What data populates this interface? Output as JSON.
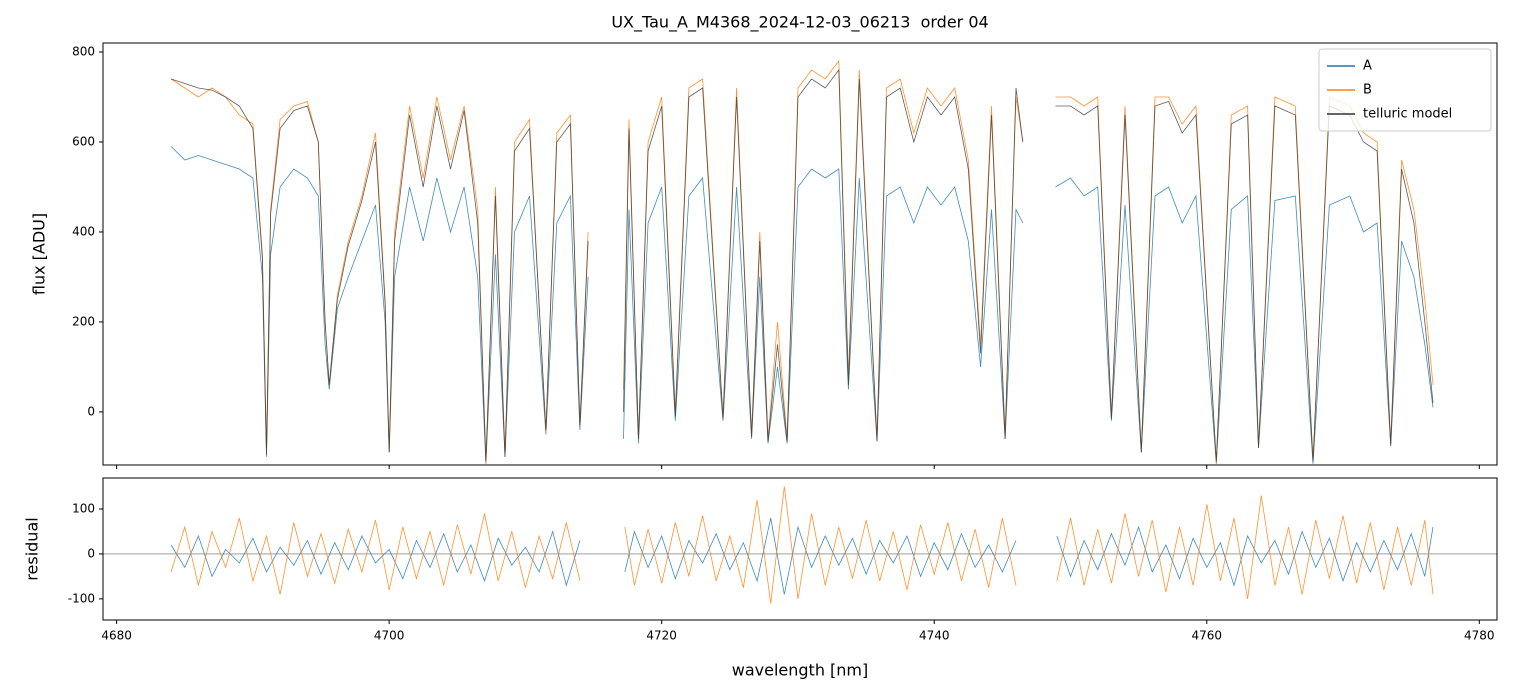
{
  "chart_data": [
    {
      "type": "line",
      "title": "UX_Tau_A_M4368_2024-12-03_06213  order 04",
      "ylabel": "flux [ADU]",
      "xlim": [
        4679,
        4781.3
      ],
      "ylim": [
        -118,
        820
      ],
      "yticks": [
        0,
        200,
        400,
        600,
        800
      ],
      "legend": "upper right",
      "x": [
        4684,
        4685,
        4686,
        4687,
        4688,
        4689,
        4690,
        4690.7,
        4691,
        4691.3,
        4692,
        4693,
        4694,
        4694.8,
        4695.3,
        4695.6,
        4696.2,
        4697,
        4698,
        4699,
        4699.7,
        4700,
        4700.4,
        4701.5,
        4702.5,
        4703.5,
        4704.5,
        4705.5,
        4706.5,
        4707.1,
        4707.8,
        4708.5,
        4709.2,
        4710.3,
        4711.5,
        4712.3,
        4713.3,
        4714,
        4714.6,
        4715.9,
        4717.2,
        4717.6,
        4718.3,
        4719,
        4720,
        4721,
        4722,
        4723,
        4724.5,
        4725.5,
        4726.6,
        4727.2,
        4727.8,
        4728.5,
        4729.2,
        4730,
        4731,
        4732,
        4733,
        4733.7,
        4734.5,
        4735.8,
        4736.5,
        4737.5,
        4738.5,
        4739.5,
        4740.5,
        4741.5,
        4742.5,
        4743.4,
        4744.2,
        4745.2,
        4746,
        4746.5,
        4747.7,
        4748.9,
        4750,
        4751,
        4752,
        4753,
        4754,
        4755.2,
        4756.2,
        4757.2,
        4758.2,
        4759.2,
        4760.7,
        4761.8,
        4763,
        4763.8,
        4765,
        4766.5,
        4767.8,
        4769,
        4770.5,
        4771.5,
        4772.5,
        4773.5,
        4774.3,
        4775.2,
        4776,
        4776.6
      ],
      "series": [
        {
          "name": "A",
          "color": "#1f77b4",
          "values": [
            590,
            560,
            570,
            560,
            550,
            540,
            520,
            300,
            -100,
            350,
            500,
            540,
            520,
            480,
            150,
            50,
            230,
            300,
            380,
            460,
            200,
            -90,
            300,
            500,
            380,
            520,
            400,
            500,
            300,
            -115,
            350,
            -100,
            400,
            480,
            -50,
            420,
            480,
            -40,
            300,
            null,
            -60,
            450,
            -70,
            420,
            500,
            -20,
            480,
            520,
            -20,
            500,
            -60,
            300,
            -70,
            100,
            -70,
            500,
            540,
            520,
            540,
            50,
            520,
            -65,
            480,
            500,
            420,
            500,
            460,
            500,
            380,
            100,
            450,
            -60,
            450,
            420,
            null,
            500,
            520,
            480,
            500,
            -20,
            460,
            -90,
            480,
            500,
            420,
            480,
            -115,
            450,
            480,
            -80,
            470,
            480,
            -115,
            460,
            480,
            400,
            420,
            -75,
            380,
            300,
            150,
            10
          ]
        },
        {
          "name": "B",
          "color": "#ff7f0e",
          "values": [
            740,
            720,
            700,
            720,
            700,
            660,
            640,
            350,
            -90,
            450,
            650,
            680,
            690,
            600,
            200,
            60,
            260,
            380,
            480,
            620,
            250,
            -85,
            400,
            680,
            520,
            700,
            560,
            680,
            450,
            -115,
            500,
            -95,
            600,
            650,
            -50,
            620,
            660,
            -30,
            400,
            null,
            50,
            650,
            -60,
            600,
            700,
            0,
            720,
            740,
            -10,
            720,
            -50,
            400,
            -60,
            200,
            -60,
            720,
            760,
            740,
            780,
            80,
            760,
            -60,
            720,
            740,
            620,
            720,
            680,
            720,
            560,
            150,
            680,
            -50,
            700,
            600,
            null,
            700,
            700,
            680,
            700,
            -10,
            680,
            -85,
            700,
            700,
            640,
            680,
            -115,
            660,
            680,
            -75,
            700,
            680,
            -110,
            700,
            680,
            620,
            600,
            -70,
            560,
            450,
            250,
            60
          ]
        },
        {
          "name": "telluric model",
          "color": "#333333",
          "values": [
            740,
            730,
            720,
            715,
            700,
            680,
            630,
            340,
            -95,
            440,
            630,
            670,
            680,
            600,
            200,
            60,
            250,
            370,
            470,
            600,
            240,
            -90,
            380,
            660,
            500,
            680,
            540,
            670,
            420,
            -110,
            480,
            -100,
            580,
            630,
            -40,
            600,
            640,
            -30,
            380,
            null,
            0,
            630,
            -60,
            580,
            680,
            -10,
            700,
            720,
            -15,
            700,
            -55,
            380,
            -65,
            150,
            -65,
            700,
            740,
            720,
            760,
            60,
            740,
            -65,
            700,
            720,
            600,
            700,
            660,
            700,
            540,
            130,
            660,
            -60,
            720,
            600,
            null,
            680,
            680,
            660,
            680,
            -15,
            660,
            -90,
            680,
            690,
            620,
            660,
            -110,
            640,
            660,
            -80,
            680,
            660,
            -110,
            680,
            660,
            600,
            580,
            -75,
            540,
            420,
            200,
            20
          ]
        }
      ]
    },
    {
      "type": "line",
      "xlabel": "wavelength [nm]",
      "ylabel": "residual",
      "xlim": [
        4679,
        4781.3
      ],
      "ylim": [
        -147,
        169
      ],
      "xticks": [
        4680,
        4700,
        4720,
        4740,
        4760,
        4780
      ],
      "yticks": [
        -100,
        0,
        100
      ],
      "x": [
        4684,
        4685,
        4686,
        4687,
        4688,
        4689,
        4690,
        4691,
        4692,
        4693,
        4694,
        4695,
        4696,
        4697,
        4698,
        4699,
        4700,
        4701,
        4702,
        4703,
        4704,
        4705,
        4706,
        4707,
        4708,
        4709,
        4710,
        4711,
        4712,
        4713,
        4714,
        4715.8,
        4717.3,
        4718,
        4719,
        4720,
        4721,
        4722,
        4723,
        4724,
        4725,
        4726,
        4727,
        4728,
        4729,
        4730,
        4731,
        4732,
        4733,
        4734,
        4735,
        4736,
        4737,
        4738,
        4739,
        4740,
        4741,
        4742,
        4743,
        4744,
        4745,
        4746,
        4747.7,
        4749,
        4750,
        4751,
        4752,
        4753,
        4754,
        4755,
        4756,
        4757,
        4758,
        4759,
        4760,
        4761,
        4762,
        4763,
        4764,
        4765,
        4766,
        4767,
        4768,
        4769,
        4770,
        4771,
        4772,
        4773,
        4774,
        4775,
        4776,
        4776.6
      ],
      "series": [
        {
          "name": "A",
          "color": "#1f77b4",
          "values": [
            20,
            -30,
            40,
            -50,
            10,
            -20,
            35,
            -40,
            15,
            -25,
            30,
            -45,
            25,
            -35,
            40,
            -20,
            10,
            -55,
            30,
            -30,
            45,
            -40,
            20,
            -60,
            35,
            -25,
            15,
            -40,
            50,
            -70,
            30,
            null,
            -40,
            50,
            -30,
            40,
            -55,
            30,
            -20,
            45,
            -35,
            25,
            -60,
            80,
            -90,
            60,
            -30,
            40,
            -25,
            35,
            -45,
            30,
            -20,
            40,
            -50,
            25,
            -35,
            45,
            -30,
            20,
            -40,
            30,
            null,
            40,
            -50,
            30,
            -35,
            45,
            -25,
            60,
            -40,
            20,
            -55,
            35,
            -30,
            25,
            -70,
            40,
            -20,
            30,
            -45,
            50,
            -30,
            35,
            -60,
            25,
            -40,
            30,
            -35,
            45,
            -50,
            60
          ]
        },
        {
          "name": "B",
          "color": "#ff7f0e",
          "values": [
            -40,
            60,
            -70,
            50,
            -30,
            80,
            -60,
            40,
            -90,
            70,
            -50,
            45,
            -65,
            55,
            -40,
            75,
            -80,
            60,
            -55,
            50,
            -70,
            65,
            -45,
            90,
            -60,
            50,
            -75,
            40,
            -55,
            70,
            -60,
            null,
            60,
            -70,
            55,
            -65,
            70,
            -50,
            85,
            -60,
            40,
            -75,
            120,
            -110,
            150,
            -100,
            90,
            -70,
            60,
            -55,
            75,
            -60,
            50,
            -80,
            65,
            -45,
            70,
            -60,
            55,
            -75,
            80,
            -70,
            null,
            -60,
            80,
            -70,
            55,
            -65,
            90,
            -50,
            75,
            -85,
            60,
            -70,
            110,
            -60,
            80,
            -100,
            130,
            -70,
            60,
            -90,
            75,
            -55,
            85,
            -65,
            70,
            -80,
            60,
            -70,
            75,
            -90
          ]
        }
      ]
    }
  ]
}
